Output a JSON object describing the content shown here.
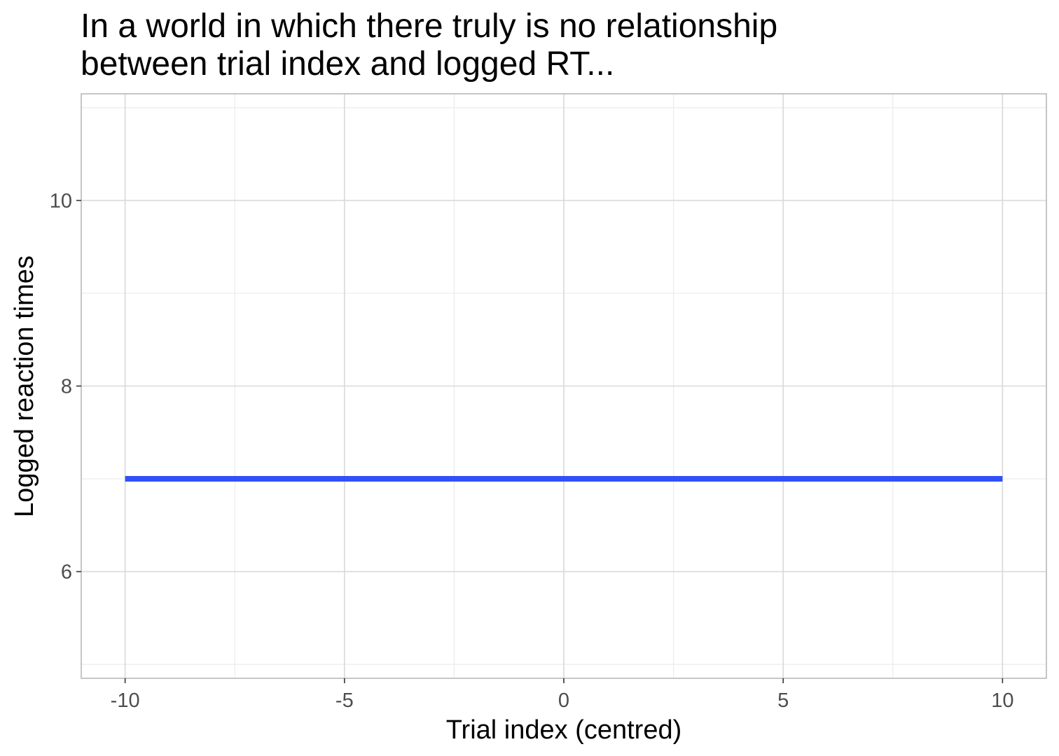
{
  "chart_data": {
    "type": "line",
    "title_lines": [
      "In a world in which there truly is no relationship",
      "between trial index and logged RT..."
    ],
    "xlabel": "Trial index (centred)",
    "ylabel": "Logged reaction times",
    "xlim": [
      -11,
      11
    ],
    "ylim": [
      4.85,
      11.15
    ],
    "x_ticks": [
      -10,
      -5,
      0,
      5,
      10
    ],
    "x_tick_labels": [
      "-10",
      "-5",
      "0",
      "5",
      "10"
    ],
    "x_minor_ticks": [
      -7.5,
      -2.5,
      2.5,
      7.5
    ],
    "y_ticks": [
      6,
      8,
      10
    ],
    "y_tick_labels": [
      "6",
      "8",
      "10"
    ],
    "y_minor_ticks": [
      5,
      7,
      9,
      11
    ],
    "grid": true,
    "series": [
      {
        "color": "#3050f8",
        "x": [
          -10,
          10
        ],
        "y": [
          7,
          7
        ]
      }
    ],
    "colors": {
      "panel_border": "#b3b3b3",
      "grid_major": "#d9d9d9",
      "grid_minor": "#ebebeb"
    }
  }
}
